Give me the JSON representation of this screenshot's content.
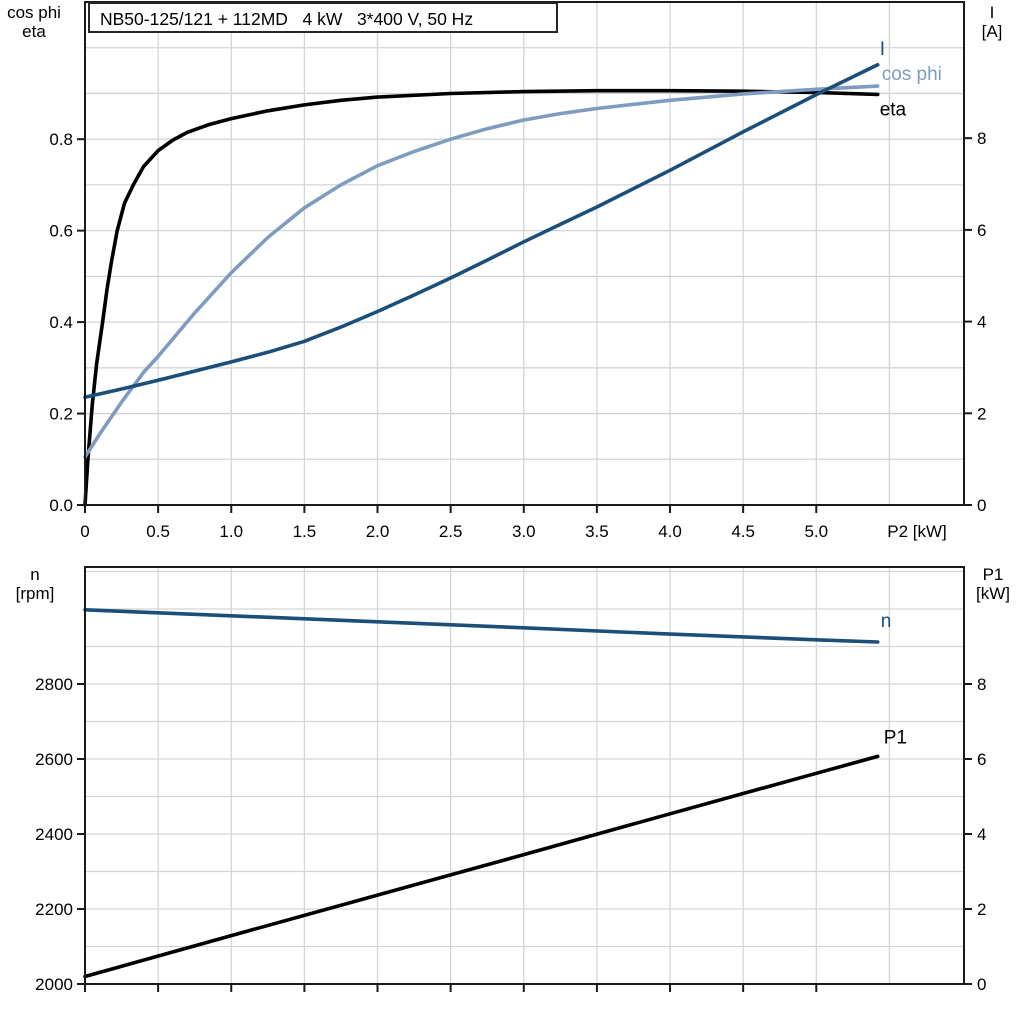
{
  "colors": {
    "eta": "#000000",
    "cos_phi": "#7e9cc0",
    "current": "#1b4e79",
    "n": "#1b4e79",
    "p1": "#000000",
    "grid": "#d2d5d8",
    "frame": "#1a1a1a",
    "text": "#000000"
  },
  "chart_data": [
    {
      "type": "line",
      "title": "NB50-125/121 + 112MD   4 kW   3*400 V, 50 Hz",
      "x_axis": {
        "label": "P2 [kW]",
        "range": [
          0,
          6.01
        ],
        "grid_step": 0.5,
        "ticks": [
          0,
          0.5,
          1.0,
          1.5,
          2.0,
          2.5,
          3.0,
          3.5,
          4.0,
          4.5,
          5.0
        ],
        "tick_labels": [
          "0",
          "0.5",
          "1.0",
          "1.5",
          "2.0",
          "2.5",
          "3.0",
          "3.5",
          "4.0",
          "4.5",
          "5.0"
        ]
      },
      "left_axis": {
        "header": [
          "cos phi",
          "eta"
        ],
        "range": [
          0,
          1.1
        ],
        "grid_step": 0.1,
        "ticks": [
          0,
          0.2,
          0.4,
          0.6,
          0.8
        ],
        "tick_labels": [
          "0.0",
          "0.2",
          "0.4",
          "0.6",
          "0.8"
        ]
      },
      "right_axis": {
        "header": [
          "I",
          "[A]"
        ],
        "range": [
          0,
          10.97
        ],
        "ticks": [
          0,
          2,
          4,
          6,
          8
        ],
        "tick_labels": [
          "0",
          "2",
          "4",
          "6",
          "8"
        ]
      },
      "series": [
        {
          "name": "eta",
          "axis": "left",
          "color_key": "eta",
          "points": [
            [
              0,
              0
            ],
            [
              0.02,
              0.1
            ],
            [
              0.05,
              0.22
            ],
            [
              0.08,
              0.31
            ],
            [
              0.12,
              0.4
            ],
            [
              0.15,
              0.47
            ],
            [
              0.18,
              0.53
            ],
            [
              0.22,
              0.6
            ],
            [
              0.27,
              0.66
            ],
            [
              0.33,
              0.7
            ],
            [
              0.4,
              0.74
            ],
            [
              0.5,
              0.775
            ],
            [
              0.6,
              0.798
            ],
            [
              0.7,
              0.815
            ],
            [
              0.85,
              0.832
            ],
            [
              1.0,
              0.845
            ],
            [
              1.25,
              0.862
            ],
            [
              1.5,
              0.875
            ],
            [
              1.75,
              0.885
            ],
            [
              2.0,
              0.892
            ],
            [
              2.5,
              0.9
            ],
            [
              3.0,
              0.904
            ],
            [
              3.5,
              0.906
            ],
            [
              4.0,
              0.906
            ],
            [
              4.5,
              0.905
            ],
            [
              5.0,
              0.902
            ],
            [
              5.42,
              0.898
            ]
          ]
        },
        {
          "name": "cos phi",
          "axis": "left",
          "color_key": "cos_phi",
          "points": [
            [
              0,
              0.105
            ],
            [
              0.1,
              0.155
            ],
            [
              0.25,
              0.225
            ],
            [
              0.4,
              0.29
            ],
            [
              0.5,
              0.325
            ],
            [
              0.75,
              0.42
            ],
            [
              1.0,
              0.508
            ],
            [
              1.25,
              0.585
            ],
            [
              1.5,
              0.65
            ],
            [
              1.75,
              0.7
            ],
            [
              2.0,
              0.742
            ],
            [
              2.25,
              0.773
            ],
            [
              2.5,
              0.8
            ],
            [
              2.75,
              0.823
            ],
            [
              3.0,
              0.842
            ],
            [
              3.25,
              0.856
            ],
            [
              3.5,
              0.867
            ],
            [
              4.0,
              0.885
            ],
            [
              4.5,
              0.899
            ],
            [
              5.0,
              0.909
            ],
            [
              5.42,
              0.916
            ]
          ]
        },
        {
          "name": "I",
          "axis": "right",
          "color_key": "current",
          "points": [
            [
              0,
              2.35
            ],
            [
              0.25,
              2.53
            ],
            [
              0.5,
              2.72
            ],
            [
              0.75,
              2.92
            ],
            [
              1.0,
              3.12
            ],
            [
              1.25,
              3.33
            ],
            [
              1.5,
              3.57
            ],
            [
              1.75,
              3.88
            ],
            [
              2.0,
              4.22
            ],
            [
              2.25,
              4.58
            ],
            [
              2.5,
              4.95
            ],
            [
              2.75,
              5.34
            ],
            [
              3.0,
              5.74
            ],
            [
              3.25,
              6.12
            ],
            [
              3.5,
              6.5
            ],
            [
              4.0,
              7.3
            ],
            [
              4.5,
              8.14
            ],
            [
              5.0,
              8.95
            ],
            [
              5.42,
              9.6
            ]
          ]
        }
      ]
    },
    {
      "type": "line",
      "title": "",
      "x_axis": {
        "label": "",
        "range": [
          0,
          6.01
        ],
        "grid_step": 0.5,
        "ticks": [
          0,
          0.5,
          1.0,
          1.5,
          2.0,
          2.5,
          3.0,
          3.5,
          4.0,
          4.5,
          5.0
        ],
        "tick_labels": []
      },
      "left_axis": {
        "header": [
          "n",
          "[rpm]"
        ],
        "range": [
          2000,
          3112
        ],
        "grid_step": 100,
        "ticks": [
          2000,
          2200,
          2400,
          2600,
          2800
        ],
        "tick_labels": [
          "2000",
          "2200",
          "2400",
          "2600",
          "2800"
        ]
      },
      "right_axis": {
        "header": [
          "P1",
          "[kW]"
        ],
        "range": [
          0,
          11.12
        ],
        "ticks": [
          0,
          2,
          4,
          6,
          8
        ],
        "tick_labels": [
          "0",
          "2",
          "4",
          "6",
          "8"
        ]
      },
      "series": [
        {
          "name": "n",
          "axis": "left",
          "color_key": "n",
          "points": [
            [
              0,
              2998
            ],
            [
              1,
              2982
            ],
            [
              2,
              2966
            ],
            [
              3,
              2950
            ],
            [
              4,
              2933
            ],
            [
              5,
              2918
            ],
            [
              5.42,
              2912
            ]
          ]
        },
        {
          "name": "P1",
          "axis": "right",
          "color_key": "p1",
          "points": [
            [
              0,
              0.2
            ],
            [
              1,
              1.29
            ],
            [
              2,
              2.37
            ],
            [
              3,
              3.45
            ],
            [
              4,
              4.54
            ],
            [
              5,
              5.62
            ],
            [
              5.42,
              6.07
            ]
          ]
        }
      ]
    }
  ]
}
